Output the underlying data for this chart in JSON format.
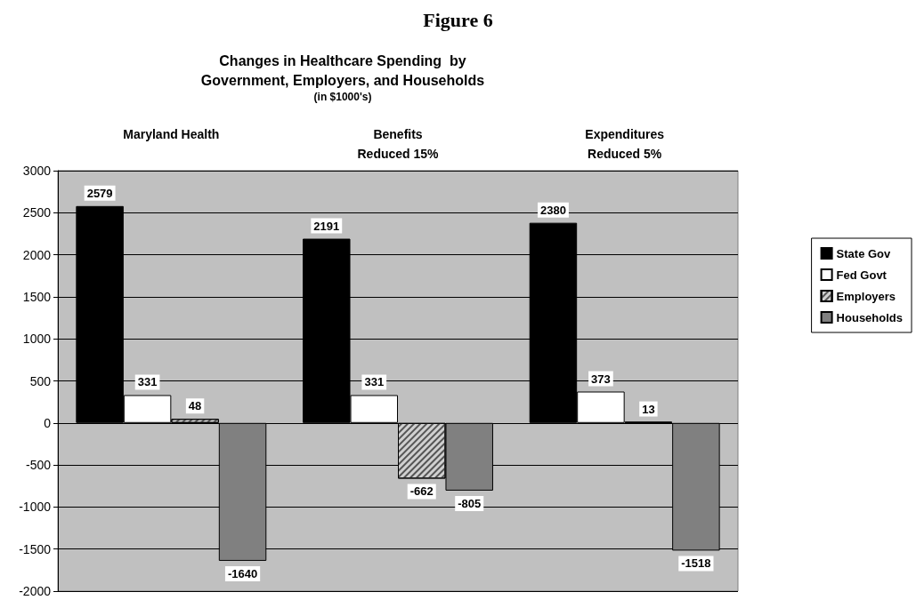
{
  "chart_data": {
    "type": "bar",
    "title": "Figure 6",
    "subtitle": "Changes in Healthcare Spending  by\nGovernment, Employers, and Households",
    "annotations": [
      "(in $1000's)"
    ],
    "categories": [
      "Maryland Health",
      "Benefits\nReduced 15%",
      "Expenditures\nReduced 5%"
    ],
    "series": [
      {
        "name": "State Gov",
        "color": "#000000",
        "values": [
          2579,
          2191,
          2380
        ]
      },
      {
        "name": "Fed Govt",
        "color": "#ffffff",
        "values": [
          331,
          331,
          373
        ]
      },
      {
        "name": "Employers",
        "color": "#d0d0d0",
        "values": [
          48,
          -662,
          13
        ]
      },
      {
        "name": "Households",
        "color": "#808080",
        "values": [
          -1640,
          -805,
          -1518
        ]
      }
    ],
    "ylim": [
      -2000,
      3000
    ],
    "yticks": [
      -2000,
      -1500,
      -1000,
      -500,
      0,
      500,
      1000,
      1500,
      2000,
      2500,
      3000
    ],
    "grid": "y",
    "legend": "right",
    "data_labels": true
  }
}
